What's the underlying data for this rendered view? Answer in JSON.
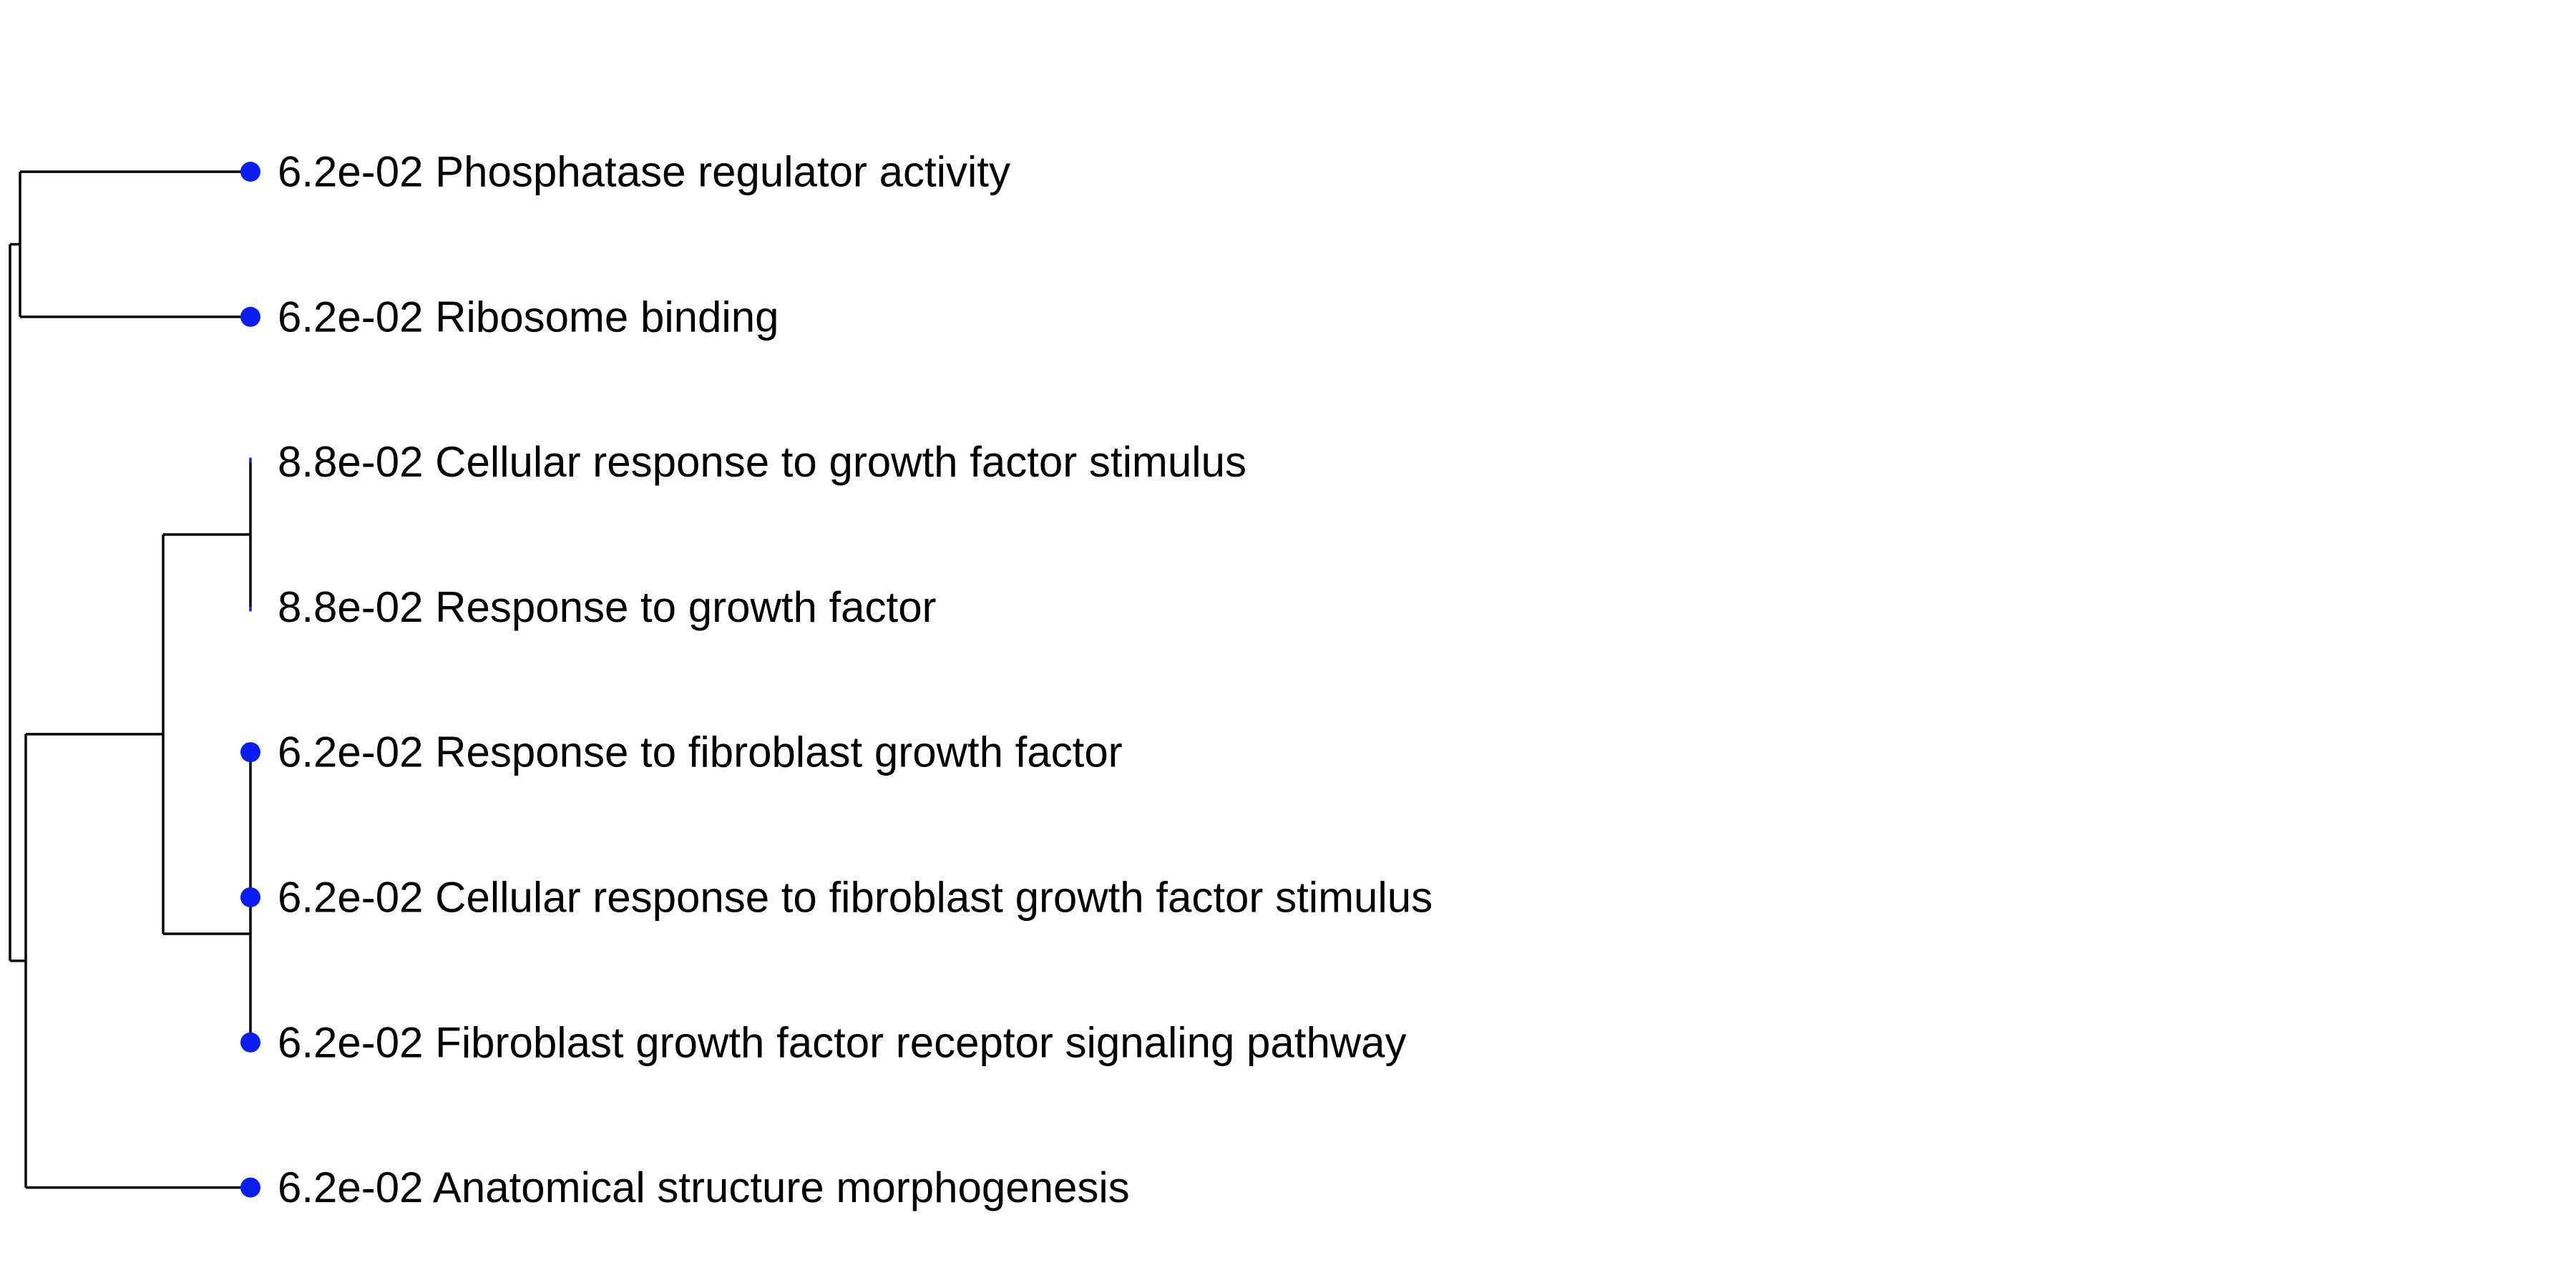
{
  "tree": {
    "point_color": "#0a1ef0",
    "line_color": "#000000",
    "leaves": [
      {
        "label": "6.2e-02 Phosphatase regulator activity",
        "pvalue": "6.2e-02",
        "term": "Phosphatase regulator activity",
        "has_point": true
      },
      {
        "label": "6.2e-02 Ribosome binding",
        "pvalue": "6.2e-02",
        "term": "Ribosome binding",
        "has_point": true
      },
      {
        "label": "8.8e-02 Cellular response to growth factor stimulus",
        "pvalue": "8.8e-02",
        "term": "Cellular response to growth factor stimulus",
        "has_point": false
      },
      {
        "label": "8.8e-02 Response to growth factor",
        "pvalue": "8.8e-02",
        "term": "Response to growth factor",
        "has_point": false
      },
      {
        "label": "6.2e-02 Response to fibroblast growth factor",
        "pvalue": "6.2e-02",
        "term": "Response to fibroblast growth factor",
        "has_point": true
      },
      {
        "label": "6.2e-02 Cellular response to fibroblast growth factor stimulus",
        "pvalue": "6.2e-02",
        "term": "Cellular response to fibroblast growth factor stimulus",
        "has_point": true
      },
      {
        "label": "6.2e-02 Fibroblast growth factor receptor signaling pathway",
        "pvalue": "6.2e-02",
        "term": "Fibroblast growth factor receptor signaling pathway",
        "has_point": true
      },
      {
        "label": "6.2e-02 Anatomical structure morphogenesis",
        "pvalue": "6.2e-02",
        "term": "Anatomical structure morphogenesis",
        "has_point": true
      }
    ]
  }
}
